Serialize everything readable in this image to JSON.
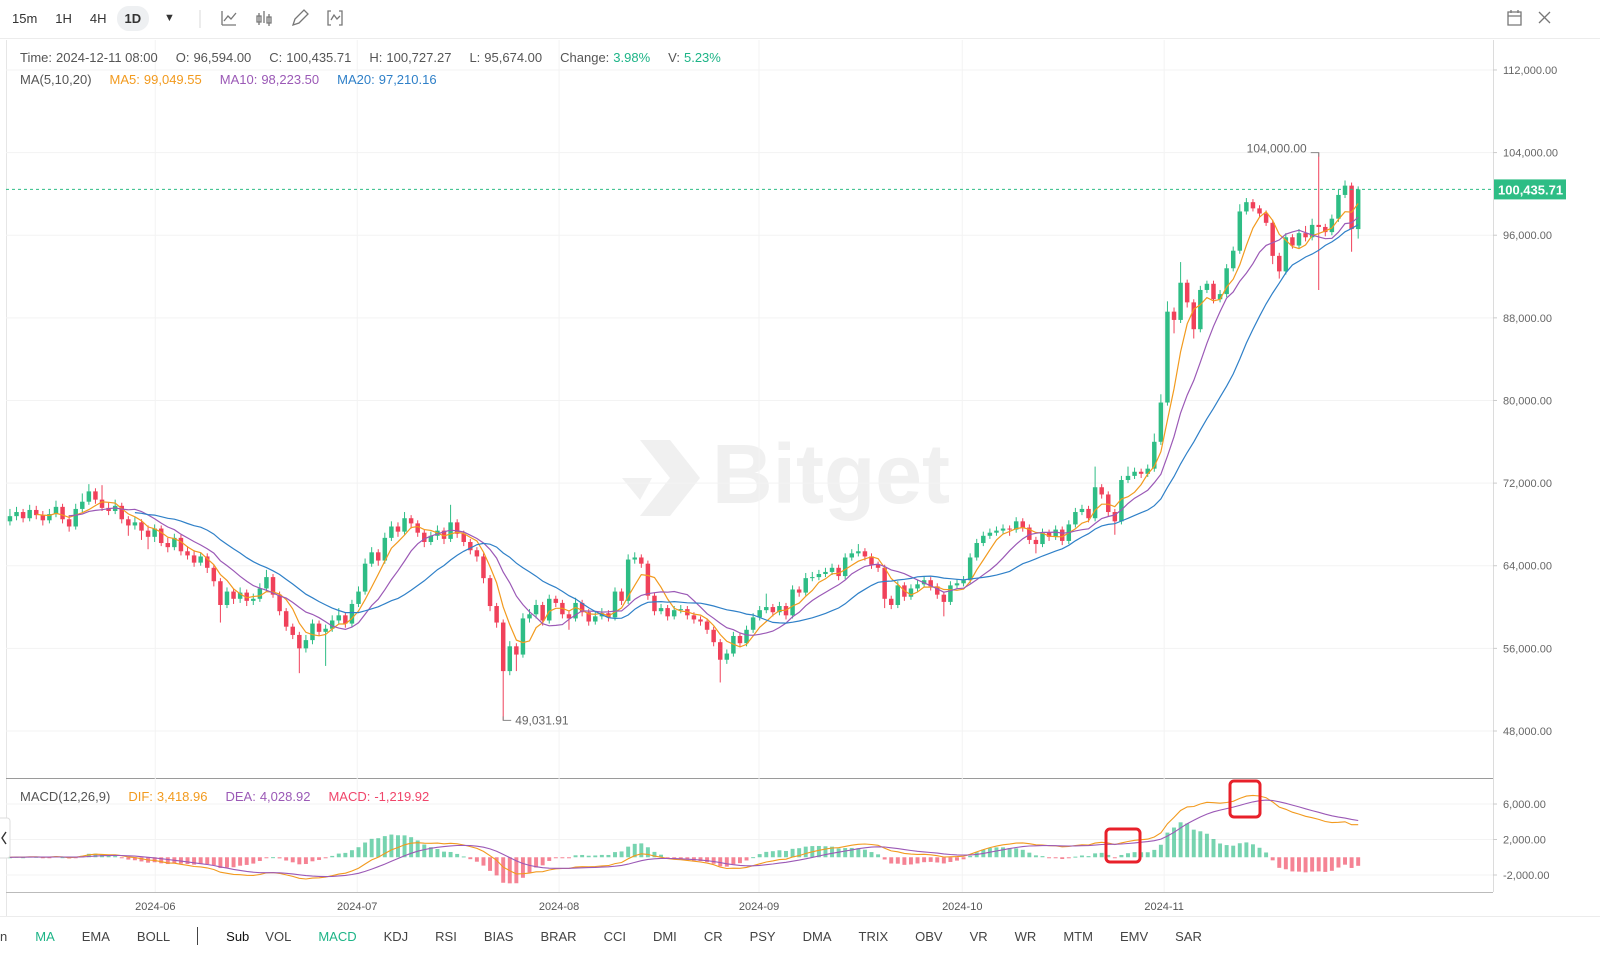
{
  "toolbar": {
    "intervals": [
      "15m",
      "1H",
      "4H",
      "1D"
    ],
    "active_index": 3
  },
  "chart_data": {
    "type": "candlestick",
    "watermark": "Bitget",
    "info": [
      {
        "label": "Time:",
        "value": "2024-12-11 08:00"
      },
      {
        "label": "O:",
        "value": "96,594.00"
      },
      {
        "label": "C:",
        "value": "100,435.71"
      },
      {
        "label": "H:",
        "value": "100,727.27"
      },
      {
        "label": "L:",
        "value": "95,674.00"
      },
      {
        "label": "Change:",
        "value": "3.98%",
        "color": "#1db487"
      },
      {
        "label": "V:",
        "value": "5.23%",
        "color": "#1db487"
      }
    ],
    "ma_info": {
      "title": "MA(5,10,20)",
      "periods": [
        5,
        10,
        20
      ],
      "items": [
        {
          "label": "MA5:",
          "value": "99,049.55",
          "color": "#f29a1e"
        },
        {
          "label": "MA10:",
          "value": "98,223.50",
          "color": "#9b59b6"
        },
        {
          "label": "MA20:",
          "value": "97,210.16",
          "color": "#2f80c8"
        }
      ]
    },
    "macd_info": {
      "title": "MACD(12,26,9)",
      "params": [
        12,
        26,
        9
      ],
      "items": [
        {
          "label": "DIF:",
          "value": "3,418.96",
          "color": "#f29a1e"
        },
        {
          "label": "DEA:",
          "value": "4,028.92",
          "color": "#9b59b6"
        },
        {
          "label": "MACD:",
          "value": "-1,219.92",
          "color": "#f0456a"
        }
      ]
    },
    "up_color": "#2ebd85",
    "down_color": "#f0415a",
    "last_price": {
      "value": 100435.71,
      "label": "100,435.71"
    },
    "high_label": "104,000.00",
    "low_label": "49,031.91",
    "ylim": [
      43450,
      114900
    ],
    "yticks": [
      {
        "value": 48000,
        "label": "48,000.00"
      },
      {
        "value": 56000,
        "label": "56,000.00"
      },
      {
        "value": 64000,
        "label": "64,000.00"
      },
      {
        "value": 72000,
        "label": "72,000.00"
      },
      {
        "value": 80000,
        "label": "80,000.00"
      },
      {
        "value": 88000,
        "label": "88,000.00"
      },
      {
        "value": 96000,
        "label": "96,000.00"
      },
      {
        "value": 104000,
        "label": "104,000.00"
      },
      {
        "value": 112000,
        "label": "112,000.00"
      }
    ],
    "y2lim": [
      -3915,
      8820
    ],
    "y2ticks": [
      {
        "value": -2000,
        "label": "-2,000.00"
      },
      {
        "value": 2000,
        "label": "2,000.00"
      },
      {
        "value": 6000,
        "label": "6,000.00"
      }
    ],
    "xlim": [
      -0.6,
      225.5
    ],
    "xticks": [
      {
        "value": 22.1,
        "label": "2024-06"
      },
      {
        "value": 52.8,
        "label": "2024-07"
      },
      {
        "value": 83.5,
        "label": "2024-08"
      },
      {
        "value": 113.9,
        "label": "2024-09"
      },
      {
        "value": 144.8,
        "label": "2024-10"
      },
      {
        "value": 175.5,
        "label": "2024-11"
      }
    ],
    "grid": true,
    "candles": [
      [
        68300,
        69500,
        67900,
        68800
      ],
      [
        68800,
        69700,
        68400,
        69200
      ],
      [
        69200,
        69500,
        68200,
        68600
      ],
      [
        68600,
        69900,
        68300,
        69400
      ],
      [
        69400,
        69800,
        68500,
        68900
      ],
      [
        68900,
        69300,
        67900,
        68400
      ],
      [
        68400,
        69500,
        68100,
        69000
      ],
      [
        69000,
        70300,
        68700,
        69700
      ],
      [
        69700,
        70000,
        68100,
        68500
      ],
      [
        68500,
        68900,
        67300,
        67800
      ],
      [
        67800,
        70000,
        67500,
        69500
      ],
      [
        69500,
        71000,
        69200,
        70200
      ],
      [
        70200,
        71900,
        69900,
        71200
      ],
      [
        71200,
        71500,
        70000,
        70400
      ],
      [
        70400,
        71800,
        69300,
        69600
      ],
      [
        69600,
        70100,
        68900,
        69300
      ],
      [
        69300,
        70400,
        69000,
        69800
      ],
      [
        69800,
        70100,
        68100,
        68500
      ],
      [
        68500,
        68800,
        66900,
        67900
      ],
      [
        67900,
        68700,
        67500,
        68200
      ],
      [
        68200,
        68500,
        66500,
        67400
      ],
      [
        67400,
        67900,
        65600,
        66800
      ],
      [
        66800,
        68000,
        66300,
        67600
      ],
      [
        67600,
        67900,
        65900,
        66200
      ],
      [
        66200,
        66700,
        65300,
        65800
      ],
      [
        65800,
        67100,
        65500,
        66700
      ],
      [
        66700,
        67000,
        65000,
        65400
      ],
      [
        65400,
        65900,
        64600,
        65000
      ],
      [
        65000,
        65500,
        63900,
        64300
      ],
      [
        64300,
        65300,
        64000,
        64900
      ],
      [
        64900,
        65200,
        63300,
        63800
      ],
      [
        63800,
        64100,
        62000,
        62500
      ],
      [
        62500,
        62800,
        58500,
        60200
      ],
      [
        60200,
        61900,
        59900,
        61500
      ],
      [
        61500,
        61800,
        60300,
        60800
      ],
      [
        60800,
        61900,
        60400,
        61400
      ],
      [
        61400,
        61700,
        60100,
        60600
      ],
      [
        60600,
        61300,
        60200,
        60800
      ],
      [
        60800,
        62300,
        60500,
        61800
      ],
      [
        61800,
        63600,
        61500,
        62900
      ],
      [
        62900,
        63200,
        60900,
        61200
      ],
      [
        61200,
        61500,
        59200,
        59600
      ],
      [
        59600,
        59900,
        57700,
        58100
      ],
      [
        58100,
        58400,
        56900,
        57300
      ],
      [
        57300,
        57600,
        53600,
        56000
      ],
      [
        56000,
        57300,
        55600,
        56800
      ],
      [
        56800,
        58800,
        56400,
        58400
      ],
      [
        58400,
        58700,
        57200,
        57600
      ],
      [
        57600,
        58300,
        54300,
        57900
      ],
      [
        57900,
        59200,
        57600,
        58700
      ],
      [
        58700,
        59900,
        58400,
        59200
      ],
      [
        59200,
        59500,
        58000,
        58400
      ],
      [
        58400,
        60700,
        58100,
        60300
      ],
      [
        60300,
        62000,
        60000,
        61500
      ],
      [
        61500,
        64700,
        61200,
        64200
      ],
      [
        64200,
        65800,
        63900,
        65300
      ],
      [
        65300,
        65600,
        64000,
        64500
      ],
      [
        64500,
        67200,
        64200,
        66700
      ],
      [
        66700,
        68300,
        66400,
        67800
      ],
      [
        67800,
        68200,
        66800,
        67300
      ],
      [
        67300,
        69200,
        67000,
        68600
      ],
      [
        68600,
        68900,
        67600,
        68100
      ],
      [
        68100,
        68400,
        66800,
        67200
      ],
      [
        67200,
        67500,
        65800,
        66300
      ],
      [
        66300,
        67300,
        66000,
        66900
      ],
      [
        66900,
        67900,
        66500,
        67400
      ],
      [
        67400,
        67700,
        66100,
        66600
      ],
      [
        66600,
        69900,
        66300,
        68200
      ],
      [
        68200,
        68500,
        66700,
        67100
      ],
      [
        67100,
        67400,
        65900,
        66300
      ],
      [
        66300,
        66600,
        65100,
        65500
      ],
      [
        65500,
        65800,
        64400,
        64900
      ],
      [
        64900,
        65200,
        62300,
        62800
      ],
      [
        62800,
        63100,
        59600,
        60100
      ],
      [
        60100,
        60400,
        58000,
        58500
      ],
      [
        58500,
        58800,
        49031.91,
        53800
      ],
      [
        53800,
        56700,
        53400,
        56200
      ],
      [
        56200,
        56500,
        53800,
        55400
      ],
      [
        55400,
        59400,
        55100,
        58900
      ],
      [
        58900,
        59800,
        58500,
        59300
      ],
      [
        59300,
        60700,
        58900,
        60200
      ],
      [
        60200,
        60500,
        58200,
        58700
      ],
      [
        58700,
        61200,
        58400,
        60800
      ],
      [
        60800,
        61100,
        60000,
        60400
      ],
      [
        60400,
        60700,
        58900,
        59300
      ],
      [
        59300,
        59600,
        57800,
        58900
      ],
      [
        58900,
        60900,
        58600,
        60400
      ],
      [
        60400,
        60700,
        59100,
        59500
      ],
      [
        59500,
        59800,
        58200,
        58600
      ],
      [
        58600,
        59600,
        58300,
        59100
      ],
      [
        59100,
        59900,
        58800,
        59400
      ],
      [
        59400,
        59700,
        58600,
        59000
      ],
      [
        59000,
        61900,
        58700,
        61500
      ],
      [
        61500,
        61800,
        60200,
        60600
      ],
      [
        60600,
        65100,
        60300,
        64600
      ],
      [
        64600,
        65300,
        64200,
        64800
      ],
      [
        64800,
        65100,
        63800,
        64200
      ],
      [
        64200,
        64500,
        60700,
        61100
      ],
      [
        61100,
        61400,
        59200,
        59600
      ],
      [
        59600,
        60300,
        59300,
        59900
      ],
      [
        59900,
        60200,
        58700,
        59100
      ],
      [
        59100,
        60100,
        58800,
        59700
      ],
      [
        59700,
        60200,
        59400,
        59800
      ],
      [
        59800,
        60100,
        58800,
        59200
      ],
      [
        59200,
        59500,
        58400,
        58800
      ],
      [
        58800,
        59100,
        58200,
        58600
      ],
      [
        58600,
        58900,
        57400,
        57800
      ],
      [
        57800,
        58100,
        56200,
        56600
      ],
      [
        56600,
        56900,
        52700,
        54900
      ],
      [
        54900,
        55900,
        54500,
        55500
      ],
      [
        55500,
        57600,
        55200,
        57200
      ],
      [
        57200,
        57500,
        56100,
        56500
      ],
      [
        56500,
        58200,
        56200,
        57800
      ],
      [
        57800,
        59400,
        57500,
        59000
      ],
      [
        59000,
        60100,
        58700,
        59700
      ],
      [
        59700,
        61300,
        59400,
        60000
      ],
      [
        60000,
        60300,
        59100,
        59500
      ],
      [
        59500,
        60500,
        59200,
        60100
      ],
      [
        60100,
        60400,
        58800,
        59200
      ],
      [
        59200,
        62100,
        58900,
        61700
      ],
      [
        61700,
        62000,
        61000,
        61400
      ],
      [
        61400,
        63300,
        61100,
        62800
      ],
      [
        62800,
        63400,
        62500,
        62900
      ],
      [
        62900,
        63600,
        62600,
        63200
      ],
      [
        63200,
        63800,
        62900,
        63400
      ],
      [
        63400,
        64200,
        63100,
        63800
      ],
      [
        63800,
        64100,
        62600,
        63000
      ],
      [
        63000,
        65200,
        62700,
        64800
      ],
      [
        64800,
        65600,
        64500,
        65200
      ],
      [
        65200,
        66100,
        64900,
        65400
      ],
      [
        65400,
        65700,
        64500,
        64900
      ],
      [
        64900,
        65200,
        63700,
        64100
      ],
      [
        64100,
        64400,
        63400,
        63800
      ],
      [
        63800,
        64100,
        59900,
        60800
      ],
      [
        60800,
        61100,
        59800,
        60200
      ],
      [
        60200,
        62500,
        59900,
        62100
      ],
      [
        62100,
        62400,
        60600,
        61000
      ],
      [
        61000,
        62200,
        60700,
        61800
      ],
      [
        61800,
        62600,
        61500,
        62200
      ],
      [
        62200,
        63000,
        61900,
        62600
      ],
      [
        62600,
        62900,
        61600,
        62000
      ],
      [
        62000,
        62300,
        60800,
        61200
      ],
      [
        61200,
        61500,
        59100,
        60500
      ],
      [
        60500,
        62500,
        60200,
        62100
      ],
      [
        62100,
        62700,
        61800,
        62300
      ],
      [
        62300,
        63000,
        62000,
        62600
      ],
      [
        62600,
        65200,
        62300,
        64800
      ],
      [
        64800,
        66600,
        64500,
        66200
      ],
      [
        66200,
        67300,
        65900,
        66900
      ],
      [
        66900,
        67600,
        66600,
        67200
      ],
      [
        67200,
        67800,
        66900,
        67400
      ],
      [
        67400,
        68000,
        67100,
        67600
      ],
      [
        67600,
        67900,
        66900,
        67500
      ],
      [
        67500,
        68700,
        67200,
        68300
      ],
      [
        68300,
        68600,
        67300,
        67700
      ],
      [
        67700,
        68000,
        66100,
        66500
      ],
      [
        66500,
        66800,
        65200,
        66100
      ],
      [
        66100,
        67600,
        65800,
        67200
      ],
      [
        67200,
        67500,
        66400,
        66800
      ],
      [
        66800,
        67900,
        66500,
        67500
      ],
      [
        67500,
        67800,
        66000,
        66400
      ],
      [
        66400,
        68400,
        66100,
        68000
      ],
      [
        68000,
        69600,
        67700,
        69200
      ],
      [
        69200,
        69900,
        68900,
        69500
      ],
      [
        69500,
        69800,
        68200,
        68600
      ],
      [
        68600,
        73600,
        68300,
        71600
      ],
      [
        71600,
        71900,
        70500,
        70900
      ],
      [
        70900,
        71200,
        68800,
        69200
      ],
      [
        69200,
        69500,
        67000,
        68300
      ],
      [
        68300,
        72700,
        68000,
        72300
      ],
      [
        72300,
        73600,
        72000,
        72700
      ],
      [
        72700,
        73500,
        72400,
        73100
      ],
      [
        73100,
        73400,
        72500,
        72900
      ],
      [
        72900,
        73800,
        72600,
        73400
      ],
      [
        73400,
        76800,
        73100,
        76000
      ],
      [
        76000,
        80600,
        75700,
        79800
      ],
      [
        79800,
        89600,
        79500,
        88600
      ],
      [
        88600,
        89000,
        86500,
        87800
      ],
      [
        87800,
        93400,
        87500,
        91400
      ],
      [
        91400,
        91700,
        89000,
        89500
      ],
      [
        89500,
        89800,
        86000,
        86900
      ],
      [
        86900,
        91100,
        86600,
        90700
      ],
      [
        90700,
        91600,
        90400,
        91300
      ],
      [
        91300,
        91600,
        89400,
        89800
      ],
      [
        89800,
        90700,
        89500,
        90300
      ],
      [
        90300,
        93200,
        90000,
        92800
      ],
      [
        92800,
        94900,
        92500,
        94500
      ],
      [
        94500,
        99000,
        94200,
        98300
      ],
      [
        98300,
        99600,
        98000,
        99200
      ],
      [
        99200,
        99500,
        98300,
        98600
      ],
      [
        98600,
        98900,
        97800,
        98100
      ],
      [
        98100,
        98400,
        96900,
        97200
      ],
      [
        97200,
        97500,
        93200,
        94000
      ],
      [
        94000,
        94300,
        91800,
        92500
      ],
      [
        92500,
        96200,
        92200,
        95800
      ],
      [
        95800,
        96100,
        94700,
        95000
      ],
      [
        95000,
        96600,
        94700,
        96200
      ],
      [
        96200,
        96900,
        95400,
        95800
      ],
      [
        95800,
        97600,
        95500,
        97000
      ],
      [
        97000,
        104000,
        90700,
        96800
      ],
      [
        96800,
        97100,
        95900,
        96300
      ],
      [
        96300,
        98000,
        96000,
        97600
      ],
      [
        97600,
        100400,
        97300,
        99900
      ],
      [
        99900,
        101300,
        99600,
        100800
      ],
      [
        100800,
        101100,
        94400,
        96594
      ],
      [
        96594,
        100727.27,
        95674,
        100435.71
      ]
    ]
  },
  "indicator_tabs": {
    "main_label": "n",
    "main": [
      "MA",
      "EMA",
      "BOLL"
    ],
    "active_main": 0,
    "sub_label": "Sub",
    "sub": [
      "VOL",
      "MACD",
      "KDJ",
      "RSI",
      "BIAS",
      "BRAR",
      "CCI",
      "DMI",
      "CR",
      "PSY",
      "DMA",
      "TRIX",
      "OBV",
      "VR",
      "WR",
      "MTM",
      "EMV",
      "SAR"
    ],
    "active_sub": 1
  }
}
